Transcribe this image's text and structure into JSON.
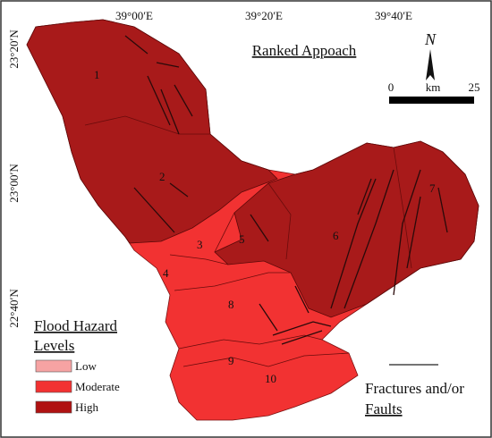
{
  "title": "Ranked Appoach",
  "north": "N",
  "scale": {
    "start": "0",
    "unit": "km",
    "end": "25"
  },
  "coordinates": {
    "longitude": [
      "39°00′E",
      "39°20′E",
      "39°40′E"
    ],
    "latitude": [
      "23°20′N",
      "23°00′N",
      "22°40′N"
    ]
  },
  "subbasins": [
    "1",
    "2",
    "3",
    "4",
    "5",
    "6",
    "7",
    "8",
    "9",
    "10"
  ],
  "legend": {
    "title_lines": [
      "Flood Hazard",
      "Levels"
    ],
    "items": [
      {
        "label": "Low",
        "color": "#f6a3a3"
      },
      {
        "label": "Moderate",
        "color": "#f23232"
      },
      {
        "label": "High",
        "color": "#b01212"
      }
    ]
  },
  "fractures": [
    "Fractures and/or",
    "Faults"
  ]
}
